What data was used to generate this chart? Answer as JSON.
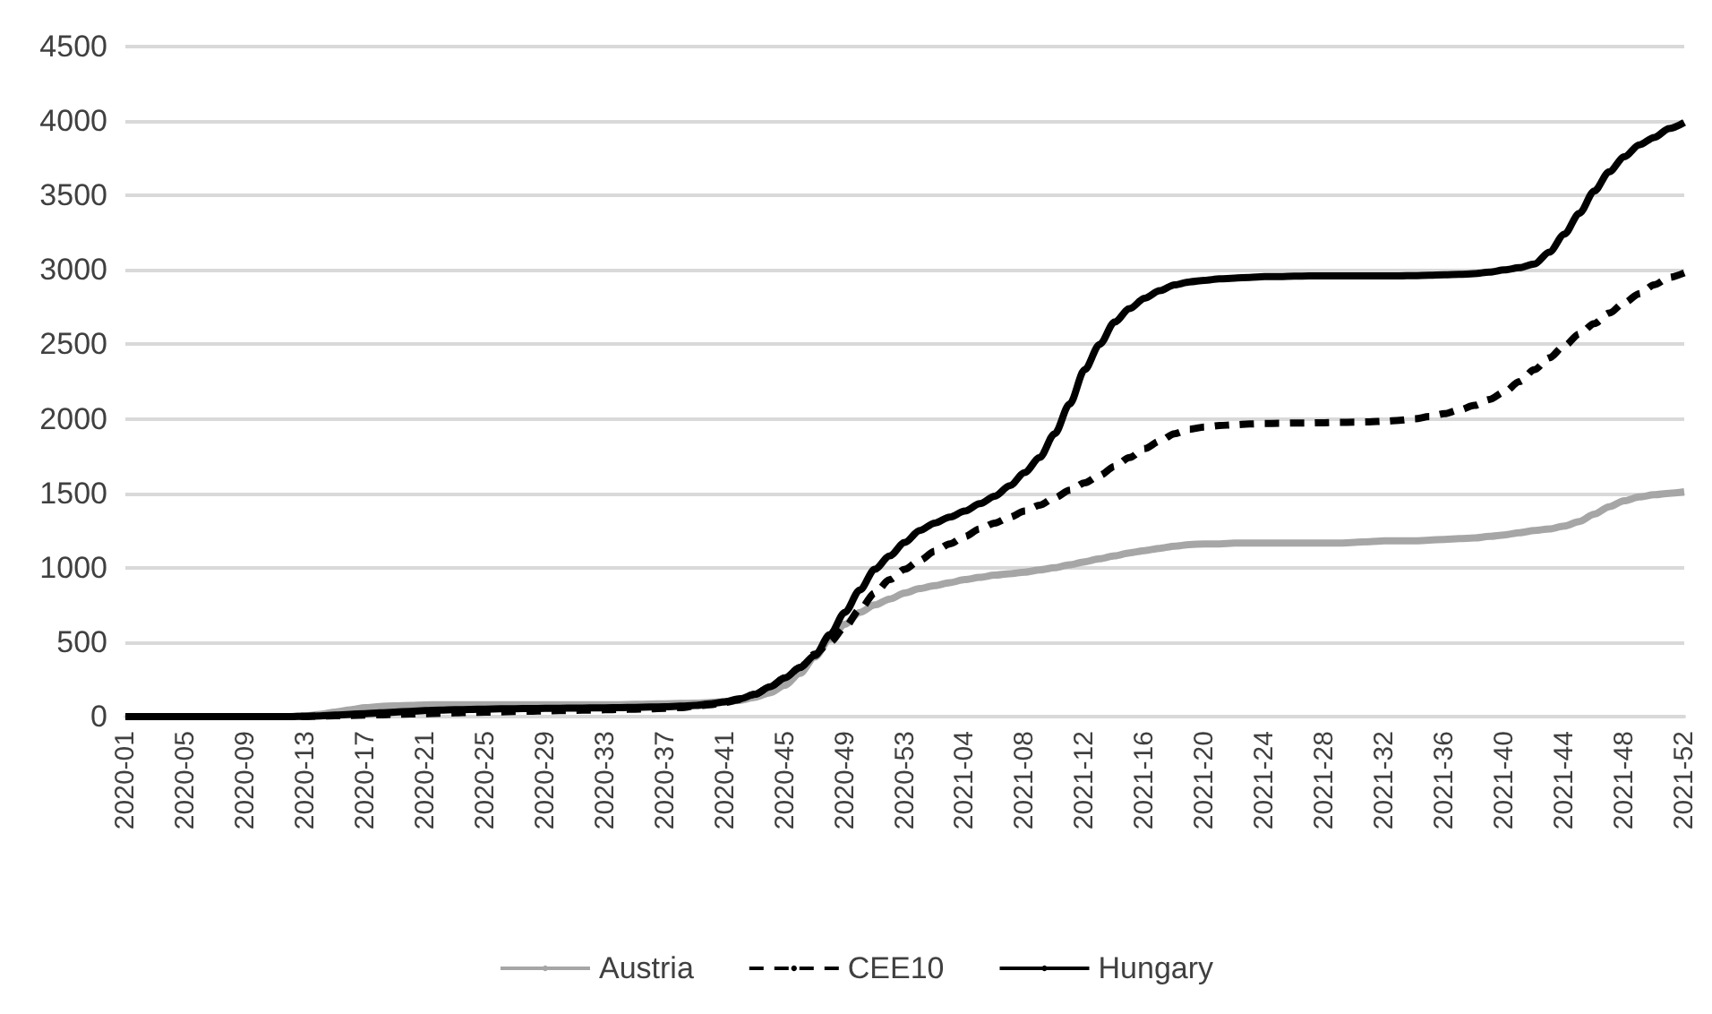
{
  "chart_data": {
    "type": "line",
    "categories": [
      "2020-01",
      null,
      null,
      null,
      "2020-05",
      null,
      null,
      null,
      "2020-09",
      null,
      null,
      null,
      "2020-13",
      null,
      null,
      null,
      "2020-17",
      null,
      null,
      null,
      "2020-21",
      null,
      null,
      null,
      "2020-25",
      null,
      null,
      null,
      "2020-29",
      null,
      null,
      null,
      "2020-33",
      null,
      null,
      null,
      "2020-37",
      null,
      null,
      null,
      "2020-41",
      null,
      null,
      null,
      "2020-45",
      null,
      null,
      null,
      "2020-49",
      null,
      null,
      null,
      "2020-53",
      null,
      null,
      null,
      "2021-04",
      null,
      null,
      null,
      "2021-08",
      null,
      null,
      null,
      "2021-12",
      null,
      null,
      null,
      "2021-16",
      null,
      null,
      null,
      "2021-20",
      null,
      null,
      null,
      "2021-24",
      null,
      null,
      null,
      "2021-28",
      null,
      null,
      null,
      "2021-32",
      null,
      null,
      null,
      "2021-36",
      null,
      null,
      null,
      "2021-40",
      null,
      null,
      null,
      "2021-44",
      null,
      null,
      null,
      "2021-48",
      null,
      null,
      null,
      "2021-52"
    ],
    "series": [
      {
        "name": "Austria",
        "color": "#a6a6a6",
        "line_style": "solid",
        "values": [
          0,
          0,
          0,
          0,
          0,
          0,
          0,
          0,
          0,
          0,
          0,
          0,
          5,
          15,
          30,
          45,
          60,
          68,
          72,
          75,
          78,
          80,
          80,
          80,
          80,
          80,
          80,
          80,
          80,
          80,
          80,
          80,
          80,
          80,
          82,
          84,
          86,
          88,
          90,
          95,
          100,
          110,
          130,
          160,
          210,
          290,
          400,
          520,
          620,
          700,
          750,
          790,
          830,
          860,
          880,
          900,
          920,
          935,
          950,
          960,
          970,
          985,
          1000,
          1020,
          1040,
          1060,
          1080,
          1100,
          1115,
          1130,
          1145,
          1155,
          1160,
          1160,
          1165,
          1165,
          1165,
          1165,
          1165,
          1165,
          1165,
          1165,
          1170,
          1175,
          1180,
          1180,
          1180,
          1185,
          1190,
          1195,
          1200,
          1210,
          1220,
          1235,
          1250,
          1260,
          1280,
          1310,
          1360,
          1410,
          1450,
          1475,
          1490,
          1500,
          1510
        ]
      },
      {
        "name": "CEE10",
        "color": "#000000",
        "line_style": "dashed",
        "values": [
          0,
          0,
          0,
          0,
          0,
          0,
          0,
          0,
          0,
          0,
          0,
          0,
          2,
          4,
          6,
          8,
          10,
          12,
          15,
          18,
          20,
          22,
          25,
          28,
          30,
          32,
          34,
          36,
          38,
          40,
          42,
          44,
          46,
          48,
          50,
          52,
          55,
          60,
          70,
          80,
          95,
          115,
          150,
          200,
          260,
          330,
          420,
          500,
          600,
          720,
          830,
          920,
          990,
          1050,
          1110,
          1160,
          1210,
          1260,
          1300,
          1340,
          1380,
          1420,
          1470,
          1520,
          1570,
          1620,
          1680,
          1740,
          1800,
          1850,
          1900,
          1930,
          1945,
          1955,
          1960,
          1965,
          1968,
          1970,
          1972,
          1972,
          1974,
          1976,
          1978,
          1980,
          1984,
          1990,
          2000,
          2015,
          2035,
          2060,
          2090,
          2130,
          2180,
          2250,
          2330,
          2410,
          2490,
          2570,
          2640,
          2710,
          2780,
          2840,
          2900,
          2950,
          2980
        ]
      },
      {
        "name": "Hungary",
        "color": "#000000",
        "line_style": "solid",
        "values": [
          0,
          0,
          0,
          0,
          0,
          0,
          0,
          0,
          0,
          0,
          0,
          0,
          2,
          5,
          10,
          15,
          20,
          25,
          30,
          35,
          40,
          43,
          46,
          48,
          50,
          52,
          53,
          54,
          55,
          56,
          57,
          58,
          59,
          60,
          62,
          64,
          66,
          70,
          75,
          85,
          100,
          120,
          150,
          200,
          260,
          330,
          410,
          550,
          700,
          850,
          990,
          1080,
          1170,
          1250,
          1300,
          1340,
          1380,
          1430,
          1480,
          1550,
          1640,
          1740,
          1900,
          2100,
          2330,
          2500,
          2650,
          2740,
          2810,
          2860,
          2900,
          2920,
          2930,
          2940,
          2945,
          2950,
          2955,
          2955,
          2958,
          2960,
          2960,
          2960,
          2960,
          2960,
          2960,
          2960,
          2962,
          2965,
          2968,
          2970,
          2975,
          2985,
          3000,
          3015,
          3040,
          3120,
          3240,
          3380,
          3530,
          3660,
          3760,
          3840,
          3890,
          3950,
          3990
        ]
      }
    ],
    "ylim": [
      0,
      4500
    ],
    "yticks": [
      0,
      500,
      1000,
      1500,
      2000,
      2500,
      3000,
      3500,
      4000,
      4500
    ],
    "grid": "y",
    "legend": "bottom",
    "marker": "none"
  }
}
